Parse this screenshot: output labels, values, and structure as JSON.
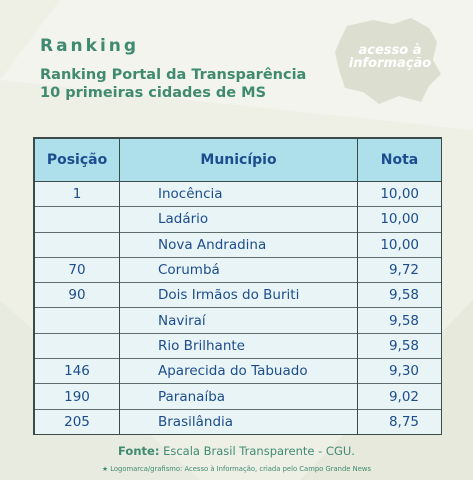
{
  "header": {
    "title": "Ranking",
    "subtitle_line1": "Ranking  Portal da Transparência",
    "subtitle_line2": "10 primeiras cidades de MS"
  },
  "logo": {
    "line1": "acesso à",
    "line2": "informação"
  },
  "table": {
    "columns": [
      "Posição",
      "Município",
      "Nota"
    ],
    "rows": [
      {
        "posicao": "1",
        "municipio": "Inocência",
        "nota": "10,00"
      },
      {
        "posicao": "",
        "municipio": "Ladário",
        "nota": "10,00"
      },
      {
        "posicao": "",
        "municipio": "Nova Andradina",
        "nota": "10,00"
      },
      {
        "posicao": "70",
        "municipio": "Corumbá",
        "nota": "9,72"
      },
      {
        "posicao": "90",
        "municipio": "Dois Irmãos do Buriti",
        "nota": "9,58"
      },
      {
        "posicao": "",
        "municipio": "Naviraí",
        "nota": "9,58"
      },
      {
        "posicao": "",
        "municipio": "Rio Brilhante",
        "nota": "9,58"
      },
      {
        "posicao": "146",
        "municipio": "Aparecida do Tabuado",
        "nota": "9,30"
      },
      {
        "posicao": "190",
        "municipio": "Paranaíba",
        "nota": "9,02"
      },
      {
        "posicao": "205",
        "municipio": "Brasilândia",
        "nota": "8,75"
      }
    ]
  },
  "footer": {
    "source_label": "Fonte:",
    "source_text": " Escala Brasil Transparente - CGU.",
    "credit": "★ Logomarca/grafismo: Acesso à Informação, criada pelo Campo Grande News"
  },
  "colors": {
    "accent_green": "#3f8a70",
    "table_header_bg": "#aee0ec",
    "table_text": "#1d4d8d",
    "page_bg": "#eef0e6"
  }
}
